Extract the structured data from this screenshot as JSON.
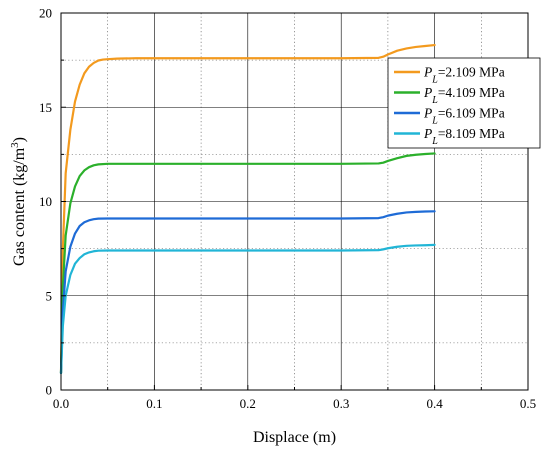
{
  "chart_data": {
    "type": "line",
    "xlabel": "Displace (m)",
    "ylabel_main": "Gas content (kg/m",
    "ylabel_sup": "3",
    "ylabel_tail": ")",
    "xlim": [
      0,
      0.5
    ],
    "ylim": [
      0,
      20
    ],
    "x_ticks": [
      0.0,
      0.1,
      0.2,
      0.3,
      0.4,
      0.5
    ],
    "x_tick_labels": [
      "0.0",
      "0.1",
      "0.2",
      "0.3",
      "0.4",
      "0.5"
    ],
    "y_ticks": [
      0,
      5,
      10,
      15,
      20
    ],
    "y_tick_labels": [
      "0",
      "5",
      "10",
      "15",
      "20"
    ],
    "grid": {
      "major": "solid",
      "minor": "dotted"
    },
    "legend_position": "top-right",
    "series": [
      {
        "name": "P_L=2.109 MPa",
        "legend_main": "P",
        "legend_sub": "L",
        "legend_tail": "=2.109 MPa",
        "color": "#F39A1E",
        "x": [
          0.0,
          0.002,
          0.005,
          0.01,
          0.015,
          0.02,
          0.025,
          0.03,
          0.035,
          0.04,
          0.045,
          0.05,
          0.06,
          0.08,
          0.1,
          0.2,
          0.3,
          0.34,
          0.345,
          0.35,
          0.36,
          0.37,
          0.38,
          0.39,
          0.4
        ],
        "y": [
          0.9,
          7.5,
          11.5,
          13.8,
          15.3,
          16.2,
          16.8,
          17.15,
          17.35,
          17.48,
          17.53,
          17.55,
          17.58,
          17.6,
          17.6,
          17.6,
          17.6,
          17.62,
          17.68,
          17.8,
          18.0,
          18.12,
          18.2,
          18.25,
          18.3
        ]
      },
      {
        "name": "P_L=4.109 MPa",
        "legend_main": "P",
        "legend_sub": "L",
        "legend_tail": "=4.109 MPa",
        "color": "#2BB02B",
        "x": [
          0.0,
          0.002,
          0.005,
          0.01,
          0.015,
          0.02,
          0.025,
          0.03,
          0.035,
          0.04,
          0.05,
          0.06,
          0.08,
          0.1,
          0.2,
          0.3,
          0.34,
          0.345,
          0.35,
          0.36,
          0.37,
          0.38,
          0.39,
          0.4
        ],
        "y": [
          0.9,
          5.5,
          8.2,
          9.9,
          10.8,
          11.35,
          11.65,
          11.82,
          11.92,
          11.97,
          12.0,
          12.0,
          12.0,
          12.0,
          12.0,
          12.0,
          12.02,
          12.06,
          12.15,
          12.3,
          12.42,
          12.48,
          12.52,
          12.55
        ]
      },
      {
        "name": "P_L=6.109 MPa",
        "legend_main": "P",
        "legend_sub": "L",
        "legend_tail": "=6.109 MPa",
        "color": "#1E6BD6",
        "x": [
          0.0,
          0.002,
          0.005,
          0.01,
          0.015,
          0.02,
          0.025,
          0.03,
          0.035,
          0.04,
          0.05,
          0.06,
          0.08,
          0.1,
          0.2,
          0.3,
          0.34,
          0.345,
          0.35,
          0.36,
          0.37,
          0.38,
          0.39,
          0.4
        ],
        "y": [
          0.9,
          4.2,
          6.3,
          7.6,
          8.3,
          8.7,
          8.9,
          9.0,
          9.06,
          9.09,
          9.1,
          9.1,
          9.1,
          9.1,
          9.1,
          9.1,
          9.12,
          9.17,
          9.25,
          9.35,
          9.42,
          9.45,
          9.47,
          9.48
        ]
      },
      {
        "name": "P_L=8.109 MPa",
        "legend_main": "P",
        "legend_sub": "L",
        "legend_tail": "=8.109 MPa",
        "color": "#21B5D6",
        "x": [
          0.0,
          0.002,
          0.005,
          0.01,
          0.015,
          0.02,
          0.025,
          0.03,
          0.035,
          0.04,
          0.05,
          0.06,
          0.08,
          0.1,
          0.2,
          0.3,
          0.34,
          0.345,
          0.35,
          0.36,
          0.37,
          0.38,
          0.39,
          0.4
        ],
        "y": [
          0.9,
          3.4,
          5.0,
          6.1,
          6.7,
          7.0,
          7.2,
          7.3,
          7.36,
          7.39,
          7.4,
          7.4,
          7.4,
          7.4,
          7.4,
          7.4,
          7.42,
          7.46,
          7.52,
          7.6,
          7.65,
          7.67,
          7.68,
          7.7
        ]
      }
    ]
  }
}
